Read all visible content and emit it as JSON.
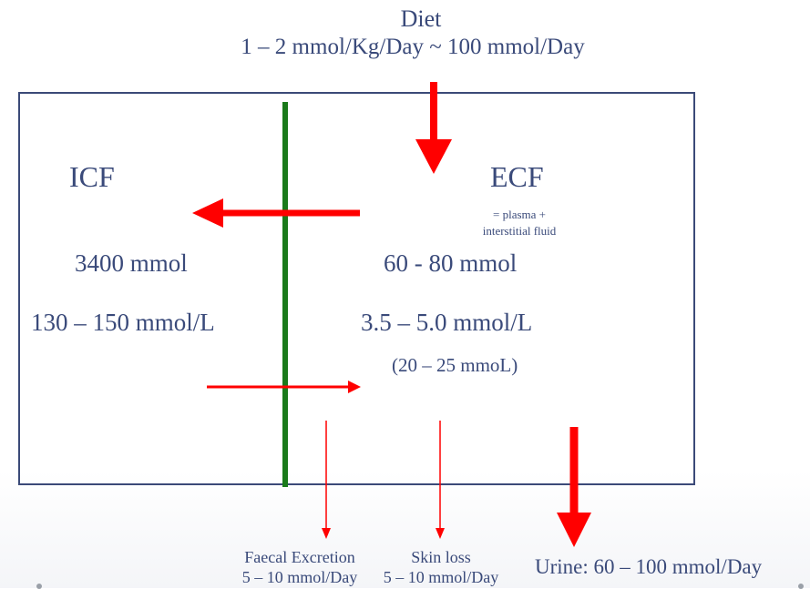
{
  "diet": {
    "title": "Diet",
    "rate": "1 – 2 mmol/Kg/Day ~ 100 mmol/Day"
  },
  "icf": {
    "label": "ICF",
    "total": "3400 mmol",
    "concentration": "130 – 150 mmol/L"
  },
  "ecf": {
    "label": "ECF",
    "note_line1": "= plasma +",
    "note_line2": "interstitial fluid",
    "total": "60 - 80 mmol",
    "concentration": "3.5 – 5.0 mmol/L",
    "parenthetical": "(20 – 25 mmoL)"
  },
  "outputs": {
    "faecal_label": "Faecal Excretion",
    "faecal_rate": "5 – 10 mmol/Day",
    "skin_label": "Skin loss",
    "skin_rate": "5 – 10 mmol/Day",
    "urine": "Urine: 60 – 100 mmol/Day"
  },
  "colors": {
    "text": "#3a4a7a",
    "box_border": "#3b4a78",
    "membrane": "#1a7a1a",
    "arrow": "#ff0000"
  }
}
